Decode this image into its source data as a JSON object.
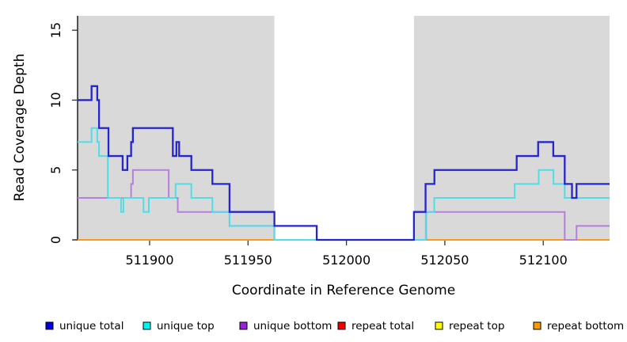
{
  "figure": {
    "background": "#ffffff",
    "plot_bg_shaded": "#d9d9d9",
    "plot_bg_unshaded": "#ffffff"
  },
  "chart_data": {
    "type": "line",
    "subtype": "step-coverage-plot",
    "title": "",
    "xlabel": "Coordinate in Reference Genome",
    "ylabel": "Read Coverage Depth",
    "xlim": [
      511863.4,
      512133.7
    ],
    "ylim": [
      0,
      16.03
    ],
    "xticks": [
      511900,
      511950,
      512000,
      512050,
      512100
    ],
    "yticks": [
      0,
      5,
      10,
      15
    ],
    "grid": false,
    "legend_position": "bottom",
    "background_regions": [
      {
        "name": "shaded-left",
        "from": 511863.4,
        "to": 511963.4,
        "color": "#d9d9d9"
      },
      {
        "name": "unshaded-center",
        "from": 511963.4,
        "to": 512034.3,
        "color": "#ffffff"
      },
      {
        "name": "shaded-right",
        "from": 512034.3,
        "to": 512133.7,
        "color": "#d9d9d9"
      }
    ],
    "series": [
      {
        "name": "repeat top",
        "color": "#ffff00",
        "width": 2,
        "points": [
          [
            511863.4,
            0
          ],
          [
            512133.7,
            0
          ]
        ]
      },
      {
        "name": "repeat bottom",
        "color": "#ff9915",
        "width": 2,
        "points": [
          [
            511863.4,
            0
          ],
          [
            512133.7,
            0
          ]
        ]
      },
      {
        "name": "repeat total",
        "color": "#cf4a5c",
        "width": 2,
        "points": [
          [
            511963.4,
            0
          ],
          [
            512034.3,
            0
          ]
        ]
      },
      {
        "name": "unique bottom",
        "color": "#b67fdb",
        "width": 2,
        "points": [
          [
            511863.4,
            3
          ],
          [
            511890.6,
            4
          ],
          [
            511891.5,
            5
          ],
          [
            511909.7,
            3
          ],
          [
            511914.3,
            2
          ],
          [
            511940.6,
            1
          ],
          [
            511963.4,
            0
          ],
          [
            512040.5,
            2
          ],
          [
            512110.9,
            0
          ],
          [
            512116.9,
            1
          ],
          [
            512133.7,
            1
          ]
        ]
      },
      {
        "name": "unique top",
        "color": "#4fdde6",
        "width": 2,
        "points": [
          [
            511863.4,
            7
          ],
          [
            511870.5,
            8
          ],
          [
            511873.4,
            7
          ],
          [
            511874.3,
            6
          ],
          [
            511878.8,
            3
          ],
          [
            511885.5,
            2
          ],
          [
            511886.7,
            3
          ],
          [
            511896.9,
            2
          ],
          [
            511899.6,
            3
          ],
          [
            511913.2,
            4
          ],
          [
            511921.2,
            3
          ],
          [
            511931.9,
            2
          ],
          [
            511940.6,
            1
          ],
          [
            511963.4,
            0
          ],
          [
            512040.3,
            2
          ],
          [
            512044.6,
            3
          ],
          [
            512085.5,
            4
          ],
          [
            512097.7,
            5
          ],
          [
            512105.2,
            4
          ],
          [
            512110.9,
            3
          ],
          [
            512133.7,
            3
          ]
        ]
      },
      {
        "name": "unique total",
        "color": "#2525cf",
        "width": 2.3,
        "points": [
          [
            511863.4,
            10
          ],
          [
            511870.5,
            11
          ],
          [
            511873.4,
            10
          ],
          [
            511874.3,
            8
          ],
          [
            511879.1,
            6
          ],
          [
            511886.3,
            5
          ],
          [
            511888.7,
            6
          ],
          [
            511890.6,
            7
          ],
          [
            511891.5,
            8
          ],
          [
            511911.8,
            6
          ],
          [
            511913.6,
            7
          ],
          [
            511915.0,
            6
          ],
          [
            511921.2,
            5
          ],
          [
            511931.9,
            4
          ],
          [
            511940.6,
            2
          ],
          [
            511963.4,
            1
          ],
          [
            511984.9,
            0
          ],
          [
            512034.3,
            2
          ],
          [
            512040.2,
            4
          ],
          [
            512044.7,
            5
          ],
          [
            512086.5,
            6
          ],
          [
            512097.4,
            7
          ],
          [
            512105.1,
            6
          ],
          [
            512110.9,
            4
          ],
          [
            512114.6,
            3
          ],
          [
            512116.9,
            4
          ],
          [
            512133.7,
            4
          ]
        ]
      }
    ],
    "legend": [
      {
        "label": "unique total",
        "swatch": "#0000e0"
      },
      {
        "label": "unique top",
        "swatch": "#00f2f2"
      },
      {
        "label": "unique bottom",
        "swatch": "#9a22d6"
      },
      {
        "label": "repeat total",
        "swatch": "#ee0000"
      },
      {
        "label": "repeat top",
        "swatch": "#ffff00"
      },
      {
        "label": "repeat bottom",
        "swatch": "#ff9900"
      }
    ]
  }
}
